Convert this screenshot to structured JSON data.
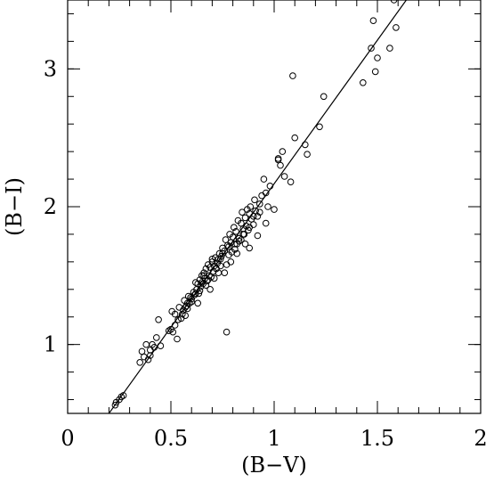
{
  "chart_data": {
    "type": "scatter",
    "title": "",
    "xlabel": "(B−V)",
    "ylabel": "(B−I)",
    "xlim": [
      0,
      2
    ],
    "ylim": [
      0.5,
      3.5
    ],
    "x_major_ticks": [
      0,
      0.5,
      1,
      1.5,
      2
    ],
    "x_tick_labels": [
      "0",
      "0.5",
      "1",
      "1.5",
      "2"
    ],
    "y_major_ticks": [
      1,
      2,
      3
    ],
    "y_tick_labels": [
      "1",
      "2",
      "3"
    ],
    "x_minor_step": 0.1,
    "y_minor_step": 0.2,
    "grid": false,
    "fit_line": {
      "x": [
        0.2,
        1.64
      ],
      "y": [
        0.5,
        3.5
      ]
    },
    "series": [
      {
        "marker": "open-circle",
        "x": [
          0.23,
          0.235,
          0.25,
          0.26,
          0.27,
          0.35,
          0.36,
          0.37,
          0.38,
          0.39,
          0.4,
          0.4,
          0.41,
          0.42,
          0.43,
          0.44,
          0.45,
          0.49,
          0.5,
          0.505,
          0.51,
          0.52,
          0.52,
          0.53,
          0.535,
          0.54,
          0.55,
          0.555,
          0.56,
          0.565,
          0.57,
          0.575,
          0.58,
          0.585,
          0.59,
          0.595,
          0.6,
          0.61,
          0.615,
          0.62,
          0.625,
          0.63,
          0.635,
          0.64,
          0.645,
          0.65,
          0.655,
          0.66,
          0.665,
          0.67,
          0.675,
          0.68,
          0.685,
          0.69,
          0.695,
          0.7,
          0.705,
          0.71,
          0.715,
          0.72,
          0.725,
          0.73,
          0.735,
          0.74,
          0.745,
          0.75,
          0.76,
          0.765,
          0.77,
          0.775,
          0.78,
          0.785,
          0.79,
          0.795,
          0.8,
          0.805,
          0.81,
          0.815,
          0.82,
          0.825,
          0.83,
          0.84,
          0.845,
          0.85,
          0.855,
          0.86,
          0.865,
          0.87,
          0.875,
          0.88,
          0.885,
          0.89,
          0.9,
          0.905,
          0.91,
          0.92,
          0.93,
          0.94,
          0.95,
          0.96,
          0.97,
          0.98,
          1.0,
          1.02,
          1.03,
          1.04,
          1.05,
          1.08,
          1.09,
          1.1,
          1.15,
          1.16,
          1.22,
          1.24,
          1.43,
          1.47,
          1.48,
          1.49,
          1.5,
          1.56,
          1.58,
          1.59,
          0.74,
          0.79,
          0.76,
          0.82,
          0.86,
          0.65,
          0.72,
          0.69,
          0.57,
          0.88,
          0.77,
          0.92,
          0.96,
          1.02,
          0.7,
          0.63,
          0.83,
          0.68,
          0.88,
          0.58,
          0.75,
          0.81,
          0.64,
          0.9,
          0.73,
          0.71,
          0.85,
          0.6,
          0.67,
          0.78,
          0.66,
          0.84,
          0.62,
          0.93
        ],
        "y": [
          0.56,
          0.58,
          0.6,
          0.62,
          0.63,
          0.87,
          0.95,
          0.91,
          1.0,
          0.89,
          0.92,
          0.96,
          1.0,
          0.98,
          1.05,
          1.18,
          0.99,
          1.1,
          1.11,
          1.24,
          1.09,
          1.22,
          1.14,
          1.04,
          1.18,
          1.27,
          1.19,
          1.22,
          1.25,
          1.32,
          1.21,
          1.28,
          1.26,
          1.35,
          1.3,
          1.34,
          1.31,
          1.38,
          1.36,
          1.45,
          1.4,
          1.44,
          1.37,
          1.47,
          1.42,
          1.5,
          1.44,
          1.52,
          1.48,
          1.55,
          1.46,
          1.58,
          1.5,
          1.56,
          1.49,
          1.6,
          1.53,
          1.57,
          1.63,
          1.55,
          1.59,
          1.62,
          1.66,
          1.57,
          1.64,
          1.7,
          1.68,
          1.76,
          1.09,
          1.72,
          1.65,
          1.8,
          1.74,
          1.67,
          1.78,
          1.85,
          1.69,
          1.82,
          1.73,
          1.9,
          1.77,
          1.88,
          1.96,
          1.84,
          1.8,
          1.92,
          1.86,
          1.98,
          1.83,
          1.95,
          2.0,
          1.91,
          1.87,
          2.05,
          1.97,
          1.93,
          2.02,
          2.08,
          2.2,
          2.1,
          2.0,
          2.15,
          1.98,
          2.34,
          2.3,
          2.4,
          2.22,
          2.18,
          2.95,
          2.5,
          2.45,
          2.38,
          2.58,
          2.8,
          2.9,
          3.15,
          3.35,
          2.98,
          3.08,
          3.15,
          3.5,
          3.3,
          1.62,
          1.6,
          1.52,
          1.66,
          1.73,
          1.45,
          1.55,
          1.4,
          1.27,
          1.7,
          1.58,
          1.79,
          1.88,
          2.35,
          1.62,
          1.3,
          1.75,
          1.47,
          1.85,
          1.3,
          1.66,
          1.73,
          1.39,
          1.93,
          1.52,
          1.48,
          1.8,
          1.33,
          1.43,
          1.71,
          1.5,
          1.76,
          1.37,
          1.96
        ]
      }
    ]
  }
}
